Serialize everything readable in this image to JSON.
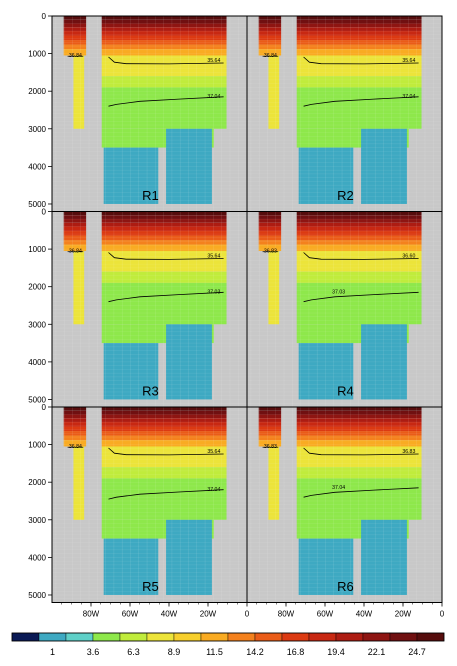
{
  "chart_data": {
    "type": "heatmap",
    "y_axis": {
      "range": [
        0,
        5200
      ],
      "ticks": [
        0,
        1000,
        2000,
        3000,
        4000,
        5000
      ],
      "tick_labels": [
        "0",
        "1000",
        "2000",
        "3000",
        "4000",
        "5000"
      ],
      "inverted": true
    },
    "x_axis": {
      "range_deg_w": [
        100,
        0
      ],
      "ticks_deg": [
        80,
        60,
        40,
        20,
        0
      ],
      "tick_labels": [
        "80W",
        "60W",
        "40W",
        "20W",
        "0"
      ]
    },
    "panels": [
      {
        "name": "R1",
        "contours": [
          {
            "label": "36.84",
            "depth": 1070,
            "kind": "upper-left"
          },
          {
            "label": "35.64",
            "depth": 1270,
            "kind": "upper"
          },
          {
            "label": "37.04",
            "depth": 2150,
            "kind": "lower"
          }
        ]
      },
      {
        "name": "R2",
        "contours": [
          {
            "label": "36.84",
            "depth": 1070,
            "kind": "upper-left"
          },
          {
            "label": "35.64",
            "depth": 1270,
            "kind": "upper"
          },
          {
            "label": "37.04",
            "depth": 2150,
            "kind": "lower"
          }
        ]
      },
      {
        "name": "R3",
        "contours": [
          {
            "label": "36.84",
            "depth": 1070,
            "kind": "upper-left"
          },
          {
            "label": "35.64",
            "depth": 1270,
            "kind": "upper"
          },
          {
            "label": "37.03",
            "depth": 2150,
            "kind": "lower"
          }
        ]
      },
      {
        "name": "R4",
        "contours": [
          {
            "label": "36.83",
            "depth": 1070,
            "kind": "upper-left"
          },
          {
            "label": "36.60",
            "depth": 1270,
            "kind": "upper"
          },
          {
            "label": "37.03",
            "depth": 2150,
            "kind": "lower"
          }
        ]
      },
      {
        "name": "R5",
        "contours": [
          {
            "label": "36.84",
            "depth": 1070,
            "kind": "upper-left"
          },
          {
            "label": "35.64",
            "depth": 1270,
            "kind": "upper"
          },
          {
            "label": "37.04",
            "depth": 2200,
            "kind": "lower"
          }
        ]
      },
      {
        "name": "R6",
        "contours": [
          {
            "label": "36.83",
            "depth": 1070,
            "kind": "upper-left"
          },
          {
            "label": "36.83",
            "depth": 1270,
            "kind": "upper"
          },
          {
            "label": "37.04",
            "depth": 2150,
            "kind": "lower"
          }
        ]
      }
    ],
    "colorbar": {
      "labels": [
        "1",
        "3.6",
        "6.3",
        "8.9",
        "11.5",
        "14.2",
        "16.8",
        "19.4",
        "22.1",
        "24.7"
      ],
      "colors": [
        "#0a1a55",
        "#3ea9c2",
        "#5fd0c8",
        "#8ee84b",
        "#c0ec3c",
        "#ece43a",
        "#f7cf2c",
        "#f9ab22",
        "#f4811d",
        "#ea5c18",
        "#dc3a12",
        "#c82812",
        "#ad1c12",
        "#8e1512",
        "#701011",
        "#560d0d"
      ]
    }
  }
}
